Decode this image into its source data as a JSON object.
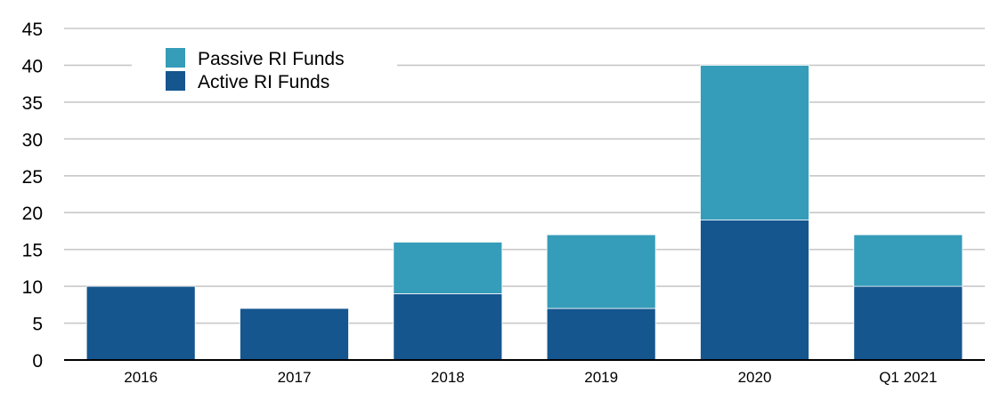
{
  "chart_data": {
    "type": "bar",
    "stacked": true,
    "categories": [
      "2016",
      "2017",
      "2018",
      "2019",
      "2020",
      "Q1 2021"
    ],
    "series": [
      {
        "name": "Active RI Funds",
        "color": "#15568f",
        "values": [
          10,
          7,
          9,
          7,
          19,
          10
        ]
      },
      {
        "name": "Passive RI Funds",
        "color": "#359cb9",
        "values": [
          0,
          0,
          7,
          10,
          21,
          7
        ]
      }
    ],
    "legend_order": [
      "Passive RI Funds",
      "Active RI Funds"
    ],
    "legend_position": "top-left",
    "ylim": [
      0,
      45
    ],
    "yticks": [
      "0",
      "5",
      "10",
      "15",
      "20",
      "25",
      "30",
      "35",
      "40",
      "45"
    ],
    "grid": true,
    "title": "",
    "xlabel": "",
    "ylabel": ""
  }
}
